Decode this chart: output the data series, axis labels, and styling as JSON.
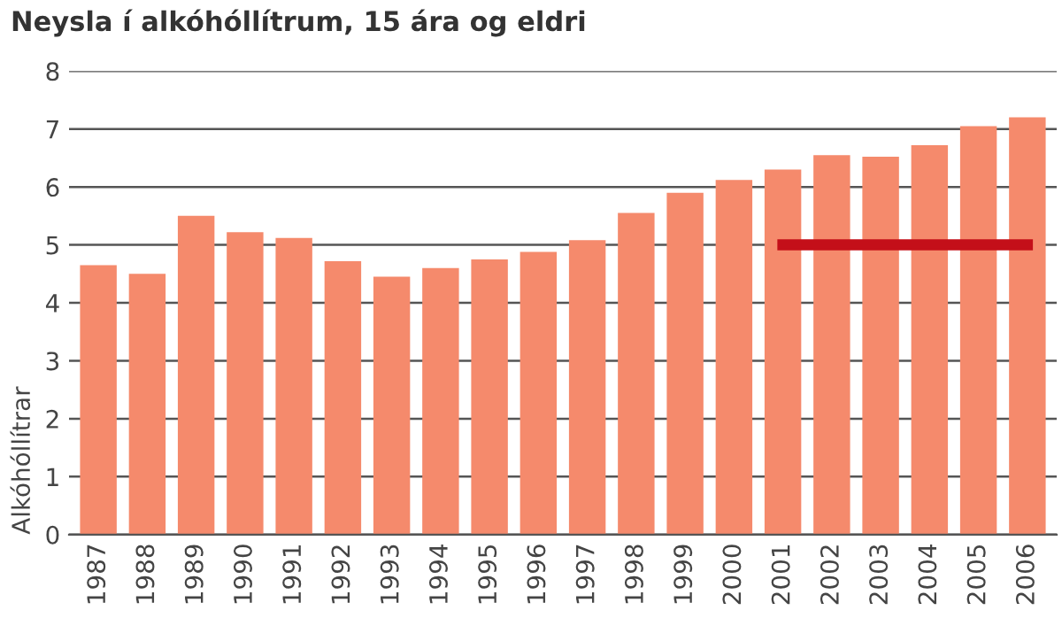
{
  "chart_data": {
    "type": "bar",
    "title": "Neysla í alkóhóllítrum, 15 ára og eldri",
    "ylabel": "Alkóhóllítrar",
    "categories": [
      "1987",
      "1988",
      "1989",
      "1990",
      "1991",
      "1992",
      "1993",
      "1994",
      "1995",
      "1996",
      "1997",
      "1998",
      "1999",
      "2000",
      "2001",
      "2002",
      "2003",
      "2004",
      "2005",
      "2006"
    ],
    "series": [
      {
        "color": "#f58a6c",
        "values": [
          4.65,
          4.5,
          5.5,
          5.22,
          5.12,
          4.72,
          4.45,
          4.6,
          4.75,
          4.88,
          5.08,
          5.55,
          5.9,
          6.12,
          6.3,
          6.55,
          6.52,
          6.72,
          7.05,
          7.2
        ]
      },
      {
        "type": "line",
        "color": "#c40f19",
        "values": [
          null,
          null,
          null,
          null,
          null,
          null,
          null,
          null,
          null,
          null,
          null,
          null,
          null,
          null,
          5,
          5,
          5,
          5,
          5,
          5
        ]
      }
    ],
    "ylim": [
      0,
      8
    ],
    "yticks": [
      0,
      1,
      2,
      3,
      4,
      5,
      6,
      7,
      8
    ],
    "grid": "y"
  }
}
